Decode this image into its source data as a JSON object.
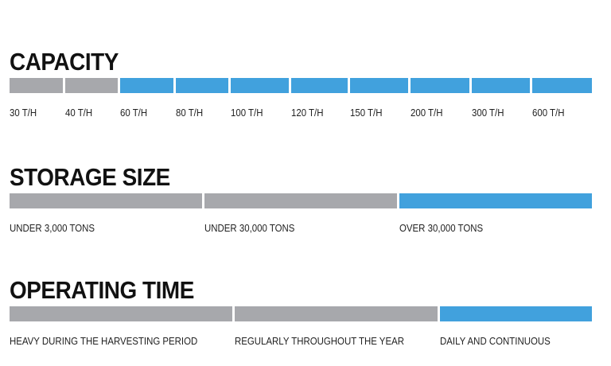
{
  "sections": [
    {
      "title": "CAPACITY",
      "segments": [
        {
          "label": "30 T/H",
          "color": "#a7a8ac"
        },
        {
          "label": "40 T/H",
          "color": "#a7a8ac"
        },
        {
          "label": "60 T/H",
          "color": "#41a1dd"
        },
        {
          "label": "80 T/H",
          "color": "#41a1dd"
        },
        {
          "label": "100 T/H",
          "color": "#41a1dd"
        },
        {
          "label": "120 T/H",
          "color": "#41a1dd"
        },
        {
          "label": "150 T/H",
          "color": "#41a1dd"
        },
        {
          "label": "200 T/H",
          "color": "#41a1dd"
        },
        {
          "label": "300 T/H",
          "color": "#41a1dd"
        },
        {
          "label": "600 T/H",
          "color": "#41a1dd"
        }
      ]
    },
    {
      "title": "STORAGE SIZE",
      "segments": [
        {
          "label": "UNDER 3,000 TONS",
          "color": "#a7a8ac"
        },
        {
          "label": "UNDER 30,000 TONS",
          "color": "#a7a8ac"
        },
        {
          "label": "OVER 30,000 TONS",
          "color": "#41a1dd"
        }
      ]
    },
    {
      "title": "OPERATING TIME",
      "segments": [
        {
          "label": "HEAVY DURING THE HARVESTING PERIOD",
          "color": "#a7a8ac"
        },
        {
          "label": "REGULARLY THROUGHOUT THE YEAR",
          "color": "#a7a8ac"
        },
        {
          "label": "DAILY AND CONTINUOUS",
          "color": "#41a1dd"
        }
      ]
    }
  ]
}
